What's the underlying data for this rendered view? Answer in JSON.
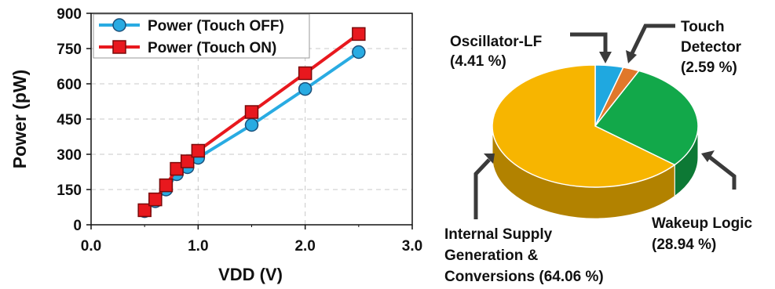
{
  "chart_data": [
    {
      "type": "line",
      "xlabel": "VDD (V)",
      "ylabel": "Power (pW)",
      "xlim": [
        0,
        3.0
      ],
      "ylim": [
        0,
        900
      ],
      "x_ticks": [
        "0.0",
        "1.0",
        "2.0",
        "3.0"
      ],
      "y_ticks": [
        "0",
        "150",
        "300",
        "450",
        "600",
        "750",
        "900"
      ],
      "grid": true,
      "legend_position": "top-left",
      "x": [
        0.5,
        0.6,
        0.7,
        0.8,
        0.9,
        1.0,
        1.5,
        2.0,
        2.5
      ],
      "series": [
        {
          "name": "Power (Touch OFF)",
          "color": "#29abe2",
          "marker": "circle",
          "values": [
            58,
            100,
            150,
            215,
            245,
            285,
            425,
            578,
            735
          ]
        },
        {
          "name": "Power (Touch ON)",
          "color": "#e8181e",
          "marker": "square",
          "values": [
            62,
            108,
            168,
            238,
            270,
            315,
            480,
            645,
            812
          ]
        }
      ]
    },
    {
      "type": "pie",
      "style": "3d",
      "slices": [
        {
          "label": "Oscillator-LF",
          "percent_label": "(4.41 %)",
          "value": 4.41,
          "color": "#1fa8e0"
        },
        {
          "label": "Touch Detector",
          "percent_label": "(2.59 %)",
          "value": 2.59,
          "color": "#e0782a"
        },
        {
          "label": "Wakeup Logic",
          "percent_label": "(28.94 %)",
          "value": 28.94,
          "color": "#12a84a"
        },
        {
          "label": "Internal Supply Generation & Conversions",
          "percent_label": "(64.06 %)",
          "value": 64.06,
          "color": "#f7b500"
        }
      ]
    }
  ]
}
